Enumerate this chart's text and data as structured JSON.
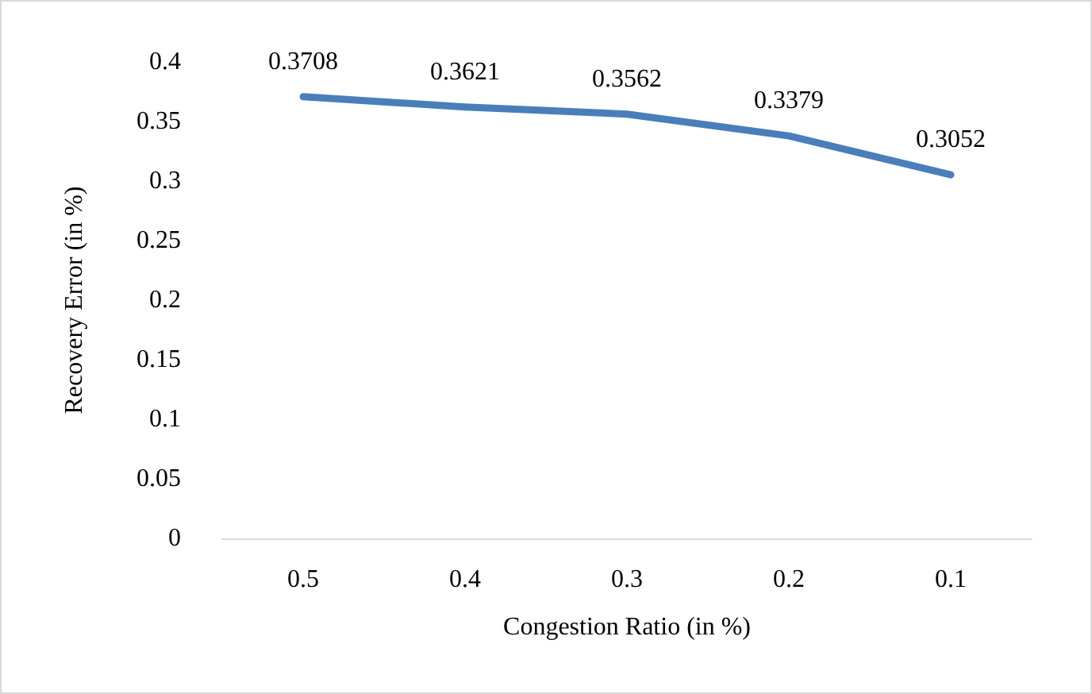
{
  "chart_data": {
    "type": "line",
    "xlabel": "Congestion Ratio (in %)",
    "ylabel": "Recovery Error (in %)",
    "categories": [
      "0.5",
      "0.4",
      "0.3",
      "0.2",
      "0.1"
    ],
    "series": [
      {
        "color": "#4a7ebb",
        "values": [
          0.3708,
          0.3621,
          0.3562,
          0.3379,
          0.3052
        ]
      }
    ],
    "ylim": [
      0,
      0.4
    ],
    "yticks": [
      0,
      0.05,
      0.1,
      0.15,
      0.2,
      0.25,
      0.3,
      0.35,
      0.4
    ],
    "data_labels": true,
    "grid": false,
    "marker": "none",
    "line_style": "solid"
  }
}
